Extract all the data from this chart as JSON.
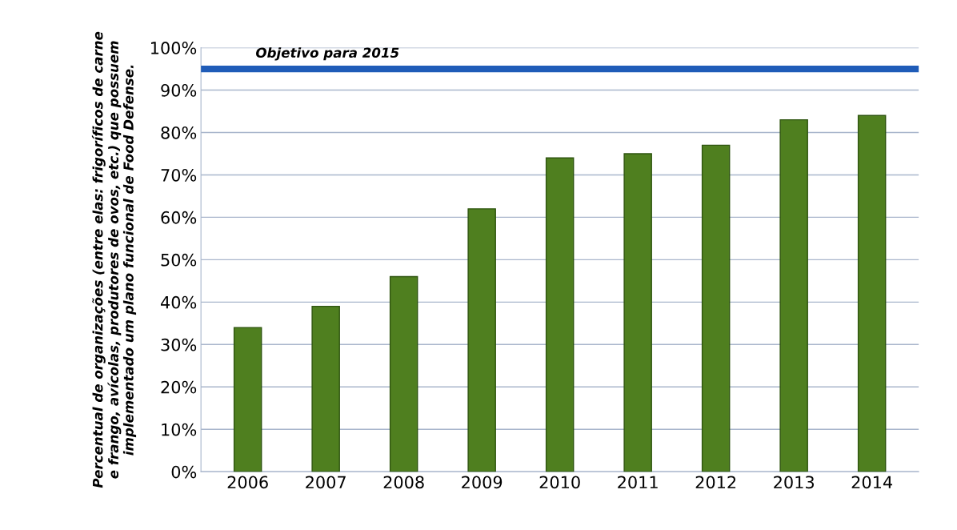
{
  "chart_data": {
    "type": "bar",
    "ylabel": "Percentual de organizações (entre elas: frigoríficos de carne\ne frango, avícolas, produtores de ovos, etc.) que possuem\nimplementado um plano funcional de Food Defense.",
    "categories": [
      "2006",
      "2007",
      "2008",
      "2009",
      "2010",
      "2011",
      "2012",
      "2013",
      "2014"
    ],
    "values": [
      34,
      39,
      46,
      62,
      74,
      75,
      77,
      83,
      84
    ],
    "color": "#4f7f1f",
    "ylim": [
      0,
      100
    ],
    "yticks": [
      {
        "value": 0,
        "label": "0%"
      },
      {
        "value": 10,
        "label": "10%"
      },
      {
        "value": 20,
        "label": "20%"
      },
      {
        "value": 30,
        "label": "30%"
      },
      {
        "value": 40,
        "label": "40%"
      },
      {
        "value": 50,
        "label": "50%"
      },
      {
        "value": 60,
        "label": "60%"
      },
      {
        "value": 70,
        "label": "70%"
      },
      {
        "value": 80,
        "label": "80%"
      },
      {
        "value": 90,
        "label": "90%"
      },
      {
        "value": 100,
        "label": "100%"
      }
    ],
    "grid": "y",
    "ref_lines": [
      {
        "axis": "y",
        "value": 95,
        "label": "Objetivo para 2015",
        "color": "#1f5cb8"
      }
    ]
  }
}
